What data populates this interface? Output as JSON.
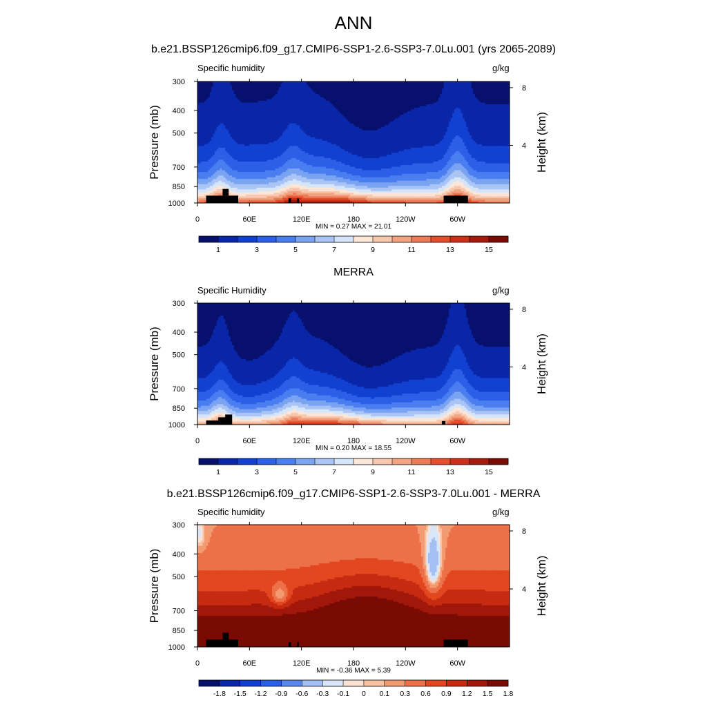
{
  "main_title": "ANN",
  "case_title": "b.e21.BSSP126cmip6.f09_g17.CMIP6-SSP1-2.6-SSP3-7.0Lu.001 (yrs 2065-2089)",
  "colors": {
    "abs_palette": [
      "#08106e",
      "#0a26a8",
      "#1240d0",
      "#2c5fe8",
      "#4a7ef0",
      "#7aa3f2",
      "#a9c4f5",
      "#d5e5fa",
      "#fbe6d8",
      "#f8c8ae",
      "#f2a381",
      "#ec7a56",
      "#e54e2d",
      "#cc2f17",
      "#a51a0c",
      "#7a0a04"
    ],
    "diff_palette": [
      "#08106e",
      "#0a26a8",
      "#1240d0",
      "#2c5fe8",
      "#5a88ef",
      "#a4bff4",
      "#d9e6fa",
      "#fbe2d4",
      "#f8c1a2",
      "#f39a72",
      "#ec7149",
      "#e2471f",
      "#c62b12",
      "#a1180a",
      "#7a0a04"
    ],
    "land_mask": "#000000"
  },
  "chart_data": [
    {
      "id": "model",
      "type": "heatmap",
      "panel_title": "",
      "var_name": "Specific humidity",
      "units": "g/kg",
      "xlabel": "",
      "ylabel": "Pressure (mb)",
      "y2label": "Height (km)",
      "x_ticks": [
        "0",
        "60E",
        "120E",
        "180",
        "120W",
        "60W"
      ],
      "x_tick_values": [
        0,
        60,
        120,
        180,
        240,
        300
      ],
      "xlim": [
        0,
        360
      ],
      "y_ticks": [
        "300",
        "400",
        "500",
        "700",
        "850",
        "1000"
      ],
      "y_tick_values": [
        300,
        400,
        500,
        700,
        850,
        1000
      ],
      "ylim": [
        1000,
        300
      ],
      "y2_ticks": [
        "8",
        "4"
      ],
      "y2_tick_values": [
        8,
        4
      ],
      "minmax": "MIN =   0.27  MAX =  21.01",
      "min": 0.27,
      "max": 21.01,
      "field": "abs",
      "colorbar": {
        "levels": [
          1,
          2,
          3,
          4,
          5,
          6,
          7,
          8,
          9,
          10,
          11,
          12,
          13,
          14,
          15
        ],
        "labels": [
          "1",
          "3",
          "5",
          "7",
          "9",
          "11",
          "13",
          "15"
        ],
        "label_indices": [
          0,
          2,
          4,
          6,
          8,
          10,
          12,
          14
        ]
      },
      "land": [
        [
          10,
          47,
          930,
          1000
        ],
        [
          29,
          36,
          870,
          930
        ],
        [
          105,
          108,
          955,
          1000
        ],
        [
          115,
          117,
          955,
          1000
        ],
        [
          284,
          312,
          930,
          1000
        ]
      ]
    },
    {
      "id": "obs",
      "type": "heatmap",
      "panel_title": "MERRA",
      "var_name": "Specific Humidity",
      "units": "g/kg",
      "xlabel": "",
      "ylabel": "Pressure (mb)",
      "y2label": "Height (km)",
      "x_ticks": [
        "0",
        "60E",
        "120E",
        "180",
        "120W",
        "60W"
      ],
      "x_tick_values": [
        0,
        60,
        120,
        180,
        240,
        300
      ],
      "xlim": [
        0,
        360
      ],
      "y_ticks": [
        "300",
        "400",
        "500",
        "700",
        "850",
        "1000"
      ],
      "y_tick_values": [
        300,
        400,
        500,
        700,
        850,
        1000
      ],
      "ylim": [
        1000,
        300
      ],
      "y2_ticks": [
        "8",
        "4"
      ],
      "y2_tick_values": [
        8,
        4
      ],
      "minmax": "MIN =   0.20  MAX =  18.55",
      "min": 0.2,
      "max": 18.55,
      "field": "abs_obs",
      "colorbar": {
        "levels": [
          1,
          2,
          3,
          4,
          5,
          6,
          7,
          8,
          9,
          10,
          11,
          12,
          13,
          14,
          15
        ],
        "labels": [
          "1",
          "3",
          "5",
          "7",
          "9",
          "11",
          "13",
          "15"
        ],
        "label_indices": [
          0,
          2,
          4,
          6,
          8,
          10,
          12,
          14
        ]
      },
      "land": [
        [
          10,
          30,
          960,
          1000
        ],
        [
          24,
          36,
          930,
          1000
        ],
        [
          32,
          40,
          905,
          1000
        ],
        [
          282,
          286,
          965,
          1000
        ]
      ]
    },
    {
      "id": "diff",
      "type": "heatmap",
      "panel_title": "b.e21.BSSP126cmip6.f09_g17.CMIP6-SSP1-2.6-SSP3-7.0Lu.001 - MERRA",
      "var_name": "Specific humidity",
      "units": "g/kg",
      "xlabel": "",
      "ylabel": "Pressure (mb)",
      "y2label": "Height (km)",
      "x_ticks": [
        "0",
        "60E",
        "120E",
        "180",
        "120W",
        "60W"
      ],
      "x_tick_values": [
        0,
        60,
        120,
        180,
        240,
        300
      ],
      "xlim": [
        0,
        360
      ],
      "y_ticks": [
        "300",
        "400",
        "500",
        "700",
        "850",
        "1000"
      ],
      "y_tick_values": [
        300,
        400,
        500,
        700,
        850,
        1000
      ],
      "ylim": [
        1000,
        300
      ],
      "y2_ticks": [
        "8",
        "4"
      ],
      "y2_tick_values": [
        8,
        4
      ],
      "minmax": "MIN =  -0.36  MAX =   5.39",
      "min": -0.36,
      "max": 5.39,
      "field": "diff",
      "colorbar": {
        "levels": [
          -1.8,
          -1.5,
          -1.2,
          -0.9,
          -0.6,
          -0.3,
          -0.1,
          0,
          0.1,
          0.3,
          0.6,
          0.9,
          1.2,
          1.5,
          1.8
        ],
        "labels": [
          "-1.8",
          "-1.5",
          "-1.2",
          "-0.9",
          "-0.6",
          "-0.3",
          "-0.1",
          "0",
          "0.1",
          "0.3",
          "0.6",
          "0.9",
          "1.2",
          "1.5",
          "1.8"
        ],
        "label_indices": [
          0,
          1,
          2,
          3,
          4,
          5,
          6,
          7,
          8,
          9,
          10,
          11,
          12,
          13,
          14
        ]
      },
      "land": [
        [
          10,
          47,
          930,
          1000
        ],
        [
          29,
          36,
          870,
          930
        ],
        [
          105,
          108,
          955,
          1000
        ],
        [
          115,
          117,
          955,
          1000
        ],
        [
          284,
          312,
          930,
          1000
        ]
      ]
    }
  ]
}
